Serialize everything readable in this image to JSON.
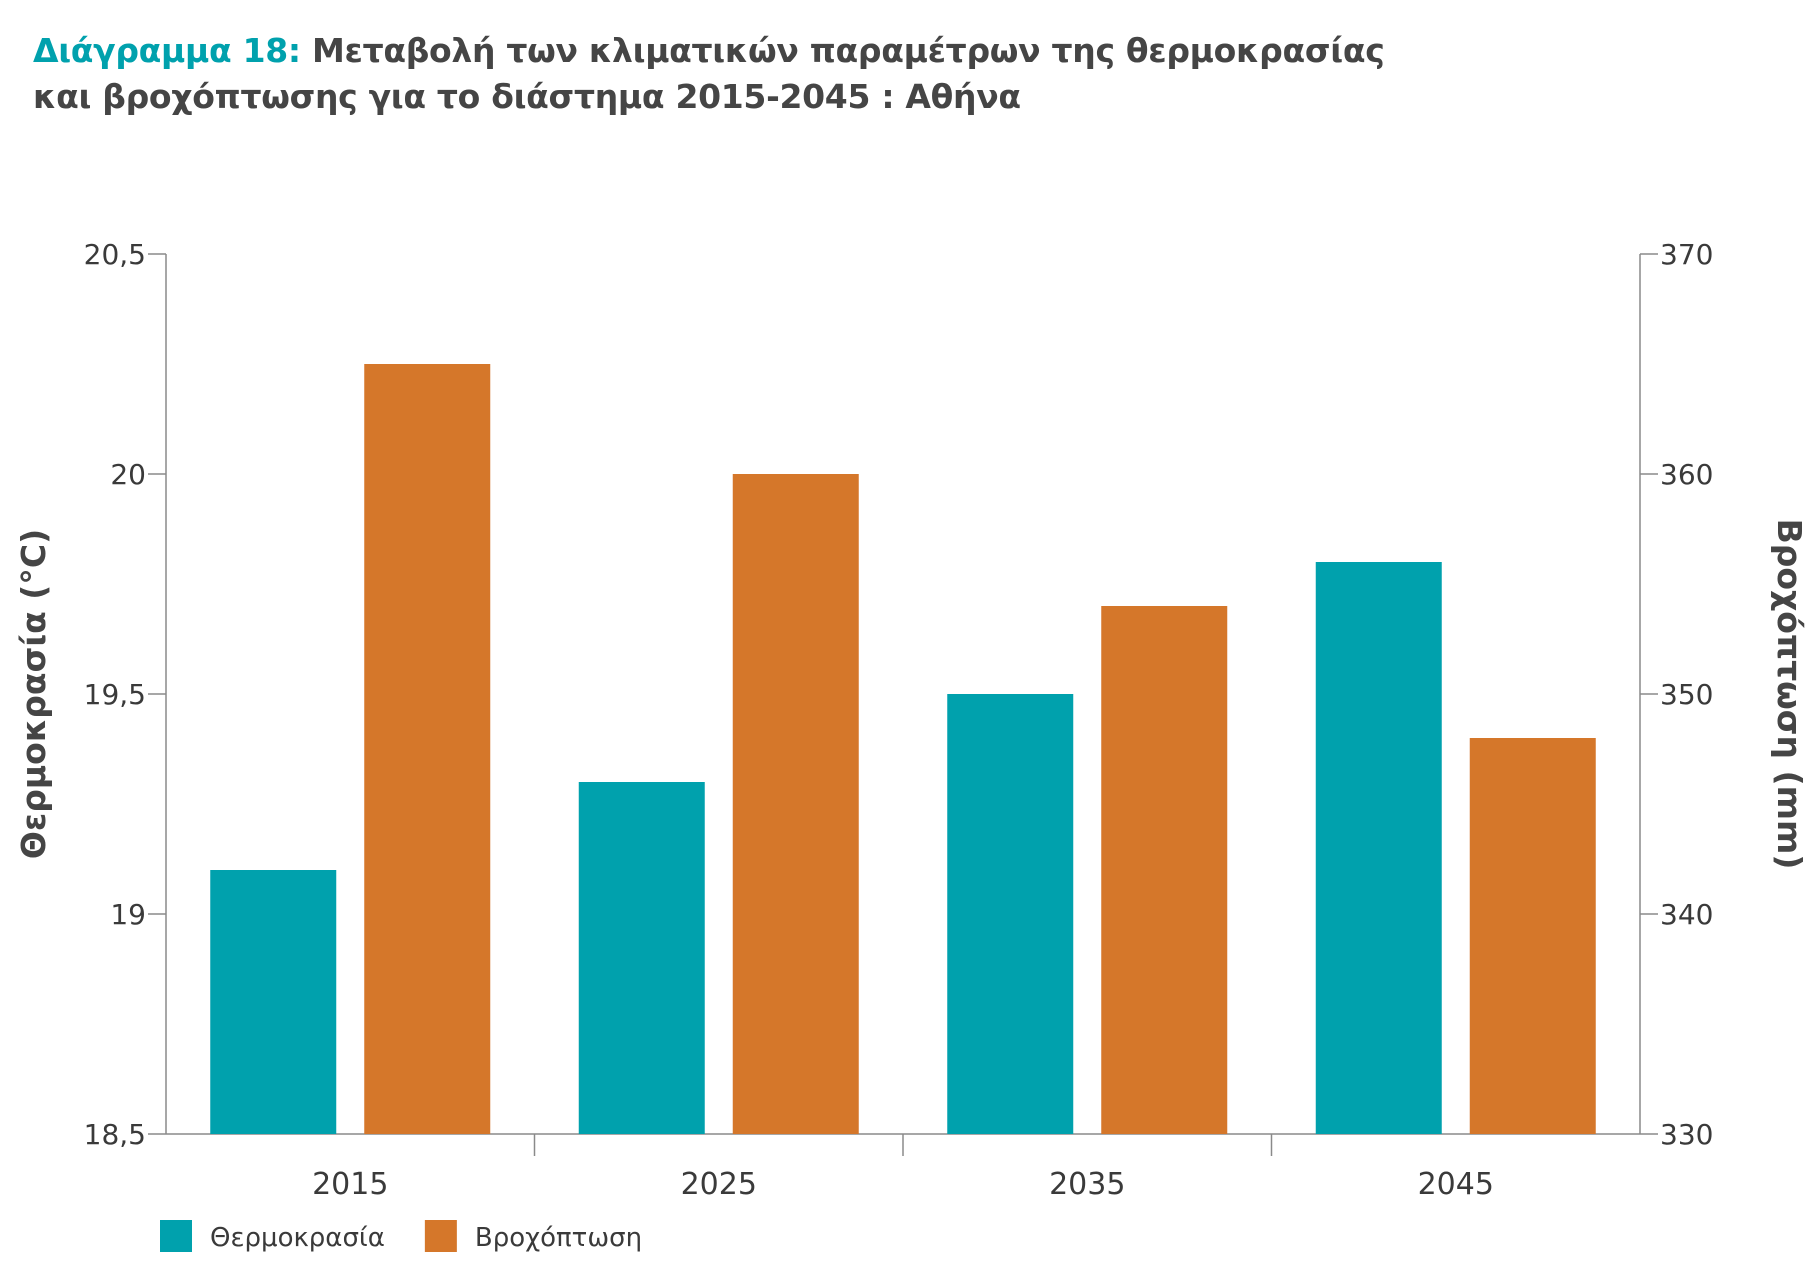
{
  "title": {
    "prefix": "Διάγραμμα 18:",
    "line1": "Μεταβολή των κλιματικών παραμέτρων της θερμοκρασίας",
    "line2": "και βροχόπτωσης για το διάστημα 2015-2045 : Αθήνα"
  },
  "chart_data": {
    "type": "bar",
    "categories": [
      "2015",
      "2025",
      "2035",
      "2045"
    ],
    "series": [
      {
        "name": "Θερμοκρασία",
        "axis": "left",
        "color": "#00a1ad",
        "values": [
          19.1,
          19.3,
          19.5,
          19.8
        ]
      },
      {
        "name": "Βροχόπτωση",
        "axis": "right",
        "color": "#d5772a",
        "values": [
          365,
          360,
          354,
          348
        ]
      }
    ],
    "y_left": {
      "label": "Θερμοκρασία (°C)",
      "min": 18.5,
      "max": 20.5,
      "ticks": [
        18.5,
        19,
        19.5,
        20,
        20.5
      ],
      "tick_labels": [
        "18,5",
        "19",
        "19,5",
        "20",
        "20,5"
      ]
    },
    "y_right": {
      "label": "Βροχόπτωση (mm)",
      "min": 330,
      "max": 370,
      "ticks": [
        330,
        340,
        350,
        360,
        370
      ],
      "tick_labels": [
        "330",
        "340",
        "350",
        "360",
        "370"
      ]
    },
    "grid": false,
    "legend_position": "bottom-left"
  }
}
